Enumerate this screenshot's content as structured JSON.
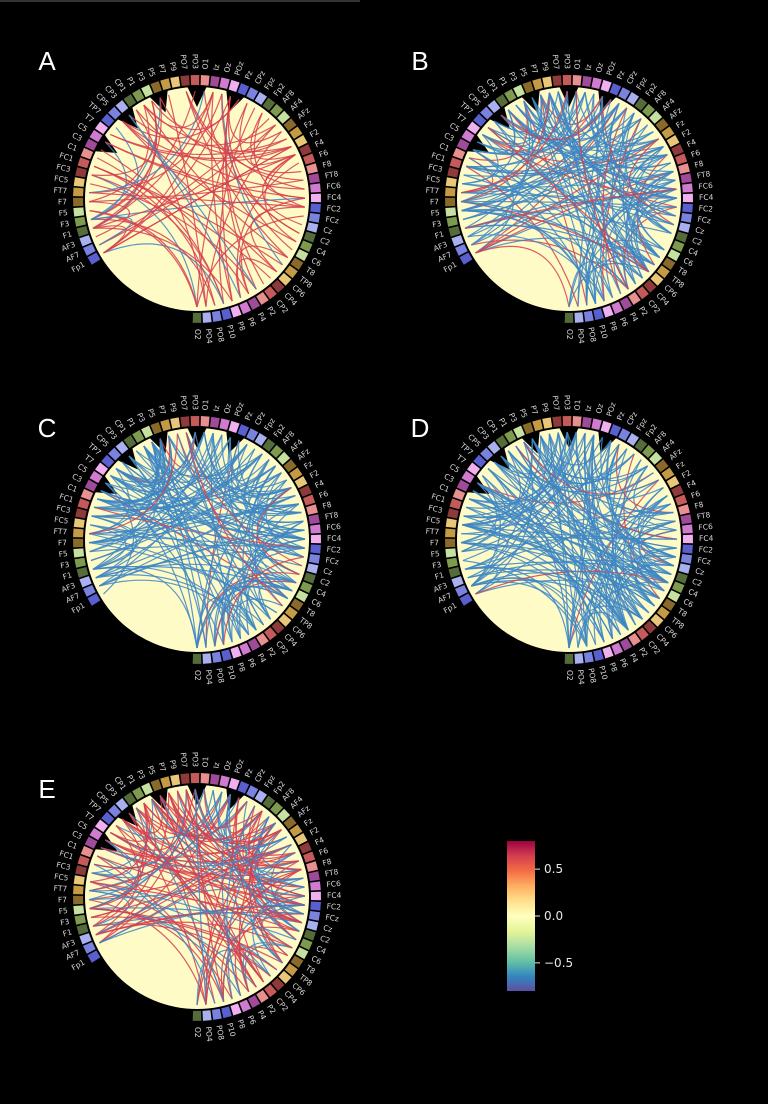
{
  "electrodes": [
    "Fp1",
    "AF7",
    "AF3",
    "F1",
    "F3",
    "F5",
    "F7",
    "FT7",
    "FC5",
    "FC3",
    "FC1",
    "C1",
    "C3",
    "C5",
    "T7",
    "TP7",
    "CP5",
    "CP3",
    "CP1",
    "P1",
    "P3",
    "P5",
    "P7",
    "P9",
    "PO7",
    "PO3",
    "O1",
    "Iz",
    "Oz",
    "POz",
    "Pz",
    "CPz",
    "Fpz",
    "Fp2",
    "AF8",
    "AF4",
    "AFz",
    "Fz",
    "F2",
    "F4",
    "F6",
    "F8",
    "FT8",
    "FC6",
    "FC4",
    "FC2",
    "FCz",
    "Cz",
    "C2",
    "C4",
    "C6",
    "T8",
    "TP8",
    "CP6",
    "CP4",
    "CP2",
    "P2",
    "P4",
    "P6",
    "P8",
    "P10",
    "PO8",
    "PO4",
    "O2"
  ],
  "panels": [
    {
      "letter": "A",
      "mix": 0.92,
      "density": 0.5
    },
    {
      "letter": "B",
      "mix": 0.18,
      "density": 1.0
    },
    {
      "letter": "C",
      "mix": 0.1,
      "density": 1.0
    },
    {
      "letter": "D",
      "mix": 0.04,
      "density": 1.0
    },
    {
      "letter": "E",
      "mix": 0.62,
      "density": 1.0
    }
  ],
  "colorbar": {
    "ticks": [
      {
        "value": 0.5,
        "label": "0.5"
      },
      {
        "value": 0.0,
        "label": "0.0"
      },
      {
        "value": -0.5,
        "label": "−0.5"
      }
    ],
    "min": -0.8,
    "max": 0.8,
    "stops": [
      "#5e4fa2",
      "#3288bd",
      "#66c2a5",
      "#abdda4",
      "#e6f598",
      "#ffffbf",
      "#fee08b",
      "#fdae61",
      "#f46d43",
      "#d53e4f",
      "#9e0142"
    ]
  },
  "colors": {
    "disc": "#fffbc7",
    "positive_link": "#d6404e",
    "negative_link": "#3d86c4",
    "node_palette": [
      "#5a5fd0",
      "#7a82e0",
      "#a8b0f0",
      "#556b3a",
      "#7e9a4e",
      "#c6e0a0",
      "#8a6a2a",
      "#c49a45",
      "#e8c878",
      "#8c3a3a",
      "#c45a5a",
      "#e89090",
      "#a04a9a",
      "#d07ad0",
      "#f0b0f0"
    ]
  }
}
